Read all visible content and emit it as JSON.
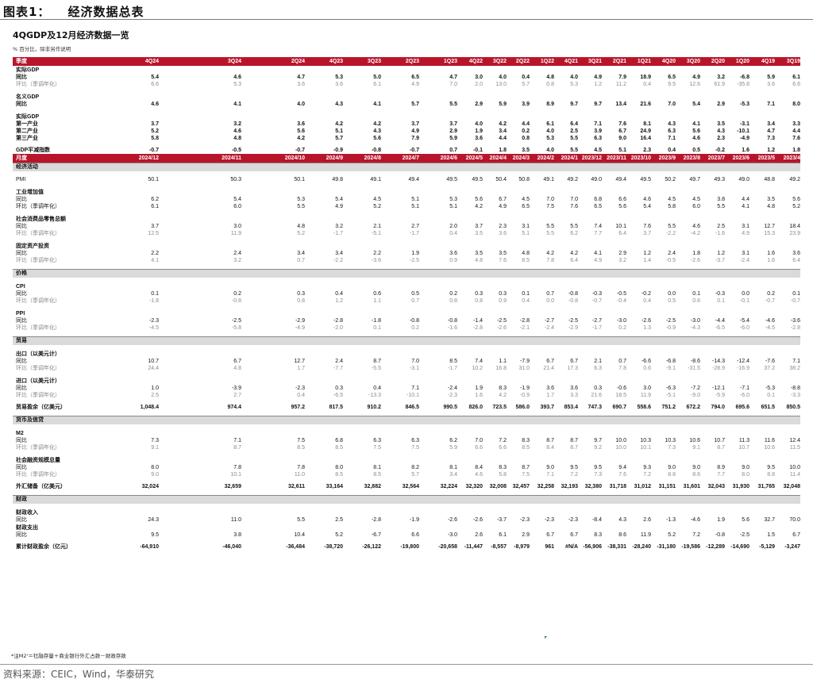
{
  "figure": {
    "label": "图表1：",
    "title": "经济数据总表"
  },
  "table_title": "4QGDP及12月经济数据一览",
  "unit_note": "% 百分比，除非另作说明",
  "quarterly": {
    "header_label": "季度",
    "columns": [
      "4Q24",
      "3Q24",
      "2Q24",
      "4Q23",
      "3Q23",
      "2Q23",
      "1Q23",
      "4Q22",
      "3Q22",
      "2Q22",
      "1Q22",
      "4Q21",
      "3Q21",
      "2Q21",
      "1Q21",
      "4Q20",
      "3Q20",
      "2Q20",
      "1Q20",
      "4Q19",
      "3Q19"
    ],
    "rows": [
      {
        "type": "hdr",
        "label": "实际GDP"
      },
      {
        "type": "bold",
        "label": "同比",
        "values": [
          "5.4",
          "4.6",
          "4.7",
          "5.3",
          "5.0",
          "6.5",
          "4.7",
          "3.0",
          "4.0",
          "0.4",
          "4.8",
          "4.0",
          "4.9",
          "7.9",
          "18.9",
          "6.5",
          "4.9",
          "3.2",
          "-6.8",
          "5.9",
          "6.1"
        ]
      },
      {
        "type": "sub",
        "label": "环比（季调年化）",
        "values": [
          "6.6",
          "5.3",
          "3.6",
          "3.6",
          "6.1",
          "4.9",
          "7.0",
          "2.0",
          "13.0",
          "5.7",
          "0.8",
          "5.3",
          "1.2",
          "11.2",
          "0.4",
          "9.5",
          "12.6",
          "61.9",
          "-35.8",
          "3.6",
          "6.6"
        ]
      },
      {
        "type": "gap"
      },
      {
        "type": "hdr",
        "label": "名义GDP"
      },
      {
        "type": "bold",
        "label": "同比",
        "values": [
          "4.6",
          "4.1",
          "4.0",
          "4.3",
          "4.1",
          "5.7",
          "5.5",
          "2.9",
          "5.9",
          "3.9",
          "8.9",
          "9.7",
          "9.7",
          "13.4",
          "21.6",
          "7.0",
          "5.4",
          "2.9",
          "-5.3",
          "7.1",
          "8.0"
        ]
      },
      {
        "type": "gap"
      },
      {
        "type": "hdr",
        "label": "实际GDP"
      },
      {
        "type": "bold",
        "label": "第一产业",
        "values": [
          "3.7",
          "3.2",
          "3.6",
          "4.2",
          "4.2",
          "3.7",
          "3.7",
          "4.0",
          "4.2",
          "4.4",
          "6.1",
          "6.4",
          "7.1",
          "7.6",
          "8.1",
          "4.3",
          "4.1",
          "3.5",
          "-3.1",
          "3.4",
          "3.3"
        ]
      },
      {
        "type": "bold",
        "label": "第二产业",
        "values": [
          "5.2",
          "4.6",
          "5.6",
          "5.1",
          "4.3",
          "4.9",
          "2.9",
          "1.9",
          "3.4",
          "0.2",
          "4.0",
          "2.5",
          "3.9",
          "6.7",
          "24.9",
          "6.3",
          "5.6",
          "4.3",
          "-10.1",
          "4.7",
          "4.4"
        ]
      },
      {
        "type": "bold",
        "label": "第三产业",
        "values": [
          "5.8",
          "4.8",
          "4.2",
          "5.7",
          "5.6",
          "7.9",
          "5.9",
          "3.6",
          "4.4",
          "0.8",
          "5.3",
          "5.5",
          "6.3",
          "9.0",
          "16.4",
          "7.1",
          "4.6",
          "2.3",
          "-4.9",
          "7.3",
          "7.6"
        ]
      },
      {
        "type": "gap"
      },
      {
        "type": "bold",
        "label": "GDP平减指数",
        "values": [
          "-0.7",
          "-0.5",
          "-0.7",
          "-0.9",
          "-0.8",
          "-0.7",
          "0.7",
          "-0.1",
          "1.8",
          "3.5",
          "4.0",
          "5.5",
          "4.5",
          "5.1",
          "2.3",
          "0.4",
          "0.5",
          "-0.2",
          "1.6",
          "1.2",
          "1.8"
        ]
      }
    ]
  },
  "monthly": {
    "header_label": "月度",
    "columns": [
      "2024/12",
      "2024/11",
      "2024/10",
      "2024/9",
      "2024/8",
      "2024/7",
      "2024/6",
      "2024/5",
      "2024/4",
      "2024/3",
      "2024/2",
      "2024/1",
      "2023/12",
      "2023/11",
      "2023/10",
      "2023/9",
      "2023/8",
      "2023/7",
      "2023/6",
      "2023/5",
      "2023/4"
    ],
    "rows": [
      {
        "type": "gray",
        "label": "经济活动"
      },
      {
        "type": "gap"
      },
      {
        "type": "plain",
        "label": "PMI",
        "values": [
          "50.1",
          "50.3",
          "50.1",
          "49.8",
          "49.1",
          "49.4",
          "49.5",
          "49.5",
          "50.4",
          "50.8",
          "49.1",
          "49.2",
          "49.0",
          "49.4",
          "49.5",
          "50.2",
          "49.7",
          "49.3",
          "49.0",
          "48.8",
          "49.2"
        ]
      },
      {
        "type": "gap"
      },
      {
        "type": "hdr",
        "label": "工业增加值"
      },
      {
        "type": "plain",
        "label": "同比",
        "values": [
          "6.2",
          "5.4",
          "5.3",
          "5.4",
          "4.5",
          "5.1",
          "5.3",
          "5.6",
          "6.7",
          "4.5",
          "7.0",
          "7.0",
          "6.8",
          "6.6",
          "4.6",
          "4.5",
          "4.5",
          "3.8",
          "4.4",
          "3.5",
          "5.6"
        ]
      },
      {
        "type": "plain",
        "label": "环比（季调年化）",
        "values": [
          "6.1",
          "6.0",
          "5.5",
          "4.9",
          "5.2",
          "5.1",
          "5.1",
          "4.2",
          "4.9",
          "6.5",
          "7.5",
          "7.6",
          "6.5",
          "5.6",
          "5.4",
          "5.8",
          "6.0",
          "5.5",
          "4.1",
          "4.8",
          "5.2"
        ]
      },
      {
        "type": "gap"
      },
      {
        "type": "hdr",
        "label": "社会消费品零售总额"
      },
      {
        "type": "plain",
        "label": "同比",
        "values": [
          "3.7",
          "3.0",
          "4.8",
          "3.2",
          "2.1",
          "2.7",
          "2.0",
          "3.7",
          "2.3",
          "3.1",
          "5.5",
          "5.5",
          "7.4",
          "10.1",
          "7.6",
          "5.5",
          "4.6",
          "2.5",
          "3.1",
          "12.7",
          "18.4"
        ]
      },
      {
        "type": "sub",
        "label": "环比（季调年化）",
        "values": [
          "12.5",
          "11.9",
          "5.2",
          "-1.7",
          "-5.1",
          "-1.7",
          "0.4",
          "3.5",
          "3.6",
          "5.1",
          "5.5",
          "6.2",
          "7.7",
          "6.4",
          "3.7",
          "-2.2",
          "-4.2",
          "-1.6",
          "4.9",
          "15.3",
          "23.9"
        ]
      },
      {
        "type": "gap"
      },
      {
        "type": "hdr",
        "label": "固定资产投资"
      },
      {
        "type": "plain",
        "label": "同比",
        "values": [
          "2.2",
          "2.4",
          "3.4",
          "3.4",
          "2.2",
          "1.9",
          "3.6",
          "3.5",
          "3.5",
          "4.8",
          "4.2",
          "4.2",
          "4.1",
          "2.9",
          "1.2",
          "2.4",
          "1.8",
          "1.2",
          "3.1",
          "1.6",
          "3.6"
        ]
      },
      {
        "type": "sub",
        "label": "环比（季调年化）",
        "values": [
          "4.1",
          "3.2",
          "0.7",
          "-2.2",
          "-3.6",
          "-2.5",
          "0.9",
          "4.8",
          "7.6",
          "8.5",
          "7.8",
          "6.4",
          "4.9",
          "3.2",
          "1.4",
          "-0.5",
          "-2.6",
          "-3.7",
          "-2.4",
          "1.6",
          "6.4"
        ]
      },
      {
        "type": "gap"
      },
      {
        "type": "gray",
        "label": "价格"
      },
      {
        "type": "gap"
      },
      {
        "type": "hdr",
        "label": "CPI"
      },
      {
        "type": "plain",
        "label": "同比",
        "values": [
          "0.1",
          "0.2",
          "0.3",
          "0.4",
          "0.6",
          "0.5",
          "0.2",
          "0.3",
          "0.3",
          "0.1",
          "0.7",
          "-0.8",
          "-0.3",
          "-0.5",
          "-0.2",
          "0.0",
          "0.1",
          "-0.3",
          "0.0",
          "0.2",
          "0.1"
        ]
      },
      {
        "type": "sub",
        "label": "环比（季调年化）",
        "values": [
          "-1.8",
          "-0.8",
          "0.8",
          "1.2",
          "1.1",
          "0.7",
          "0.8",
          "0.8",
          "0.9",
          "0.4",
          "0.0",
          "-0.8",
          "-0.7",
          "-0.4",
          "0.4",
          "0.5",
          "0.6",
          "0.1",
          "-0.1",
          "-0.7",
          "-0.7"
        ]
      },
      {
        "type": "gap"
      },
      {
        "type": "hdr",
        "label": "PPI"
      },
      {
        "type": "plain",
        "label": "同比",
        "values": [
          "-2.3",
          "-2.5",
          "-2.9",
          "-2.8",
          "-1.8",
          "-0.8",
          "-0.8",
          "-1.4",
          "-2.5",
          "-2.8",
          "-2.7",
          "-2.5",
          "-2.7",
          "-3.0",
          "-2.6",
          "-2.5",
          "-3.0",
          "-4.4",
          "-5.4",
          "-4.6",
          "-3.6"
        ]
      },
      {
        "type": "sub",
        "label": "环比（季调年化）",
        "values": [
          "-4.5",
          "-5.8",
          "-4.9",
          "-2.0",
          "0.1",
          "0.2",
          "-1.6",
          "-2.8",
          "-2.6",
          "-2.1",
          "-2.4",
          "-2.9",
          "-1.7",
          "0.2",
          "1.3",
          "-0.9",
          "-4.3",
          "-6.5",
          "-6.0",
          "-4.5",
          "-2.8"
        ]
      },
      {
        "type": "gap"
      },
      {
        "type": "gray",
        "label": "贸易"
      },
      {
        "type": "gap"
      },
      {
        "type": "hdr",
        "label": "出口（以美元计）"
      },
      {
        "type": "plain",
        "label": "同比",
        "values": [
          "10.7",
          "6.7",
          "12.7",
          "2.4",
          "8.7",
          "7.0",
          "8.5",
          "7.4",
          "1.1",
          "-7.9",
          "6.7",
          "6.7",
          "2.1",
          "0.7",
          "-6.6",
          "-6.8",
          "-8.6",
          "-14.3",
          "-12.4",
          "-7.6",
          "7.1"
        ]
      },
      {
        "type": "sub",
        "label": "环比（季调年化）",
        "values": [
          "24.4",
          "4.8",
          "1.7",
          "-7.7",
          "-5.5",
          "-3.1",
          "-1.7",
          "10.2",
          "16.8",
          "31.0",
          "21.4",
          "17.3",
          "6.3",
          "7.8",
          "0.6",
          "-9.1",
          "-31.5",
          "-28.9",
          "-16.9",
          "37.2",
          "38.2"
        ]
      },
      {
        "type": "gap"
      },
      {
        "type": "hdr",
        "label": "进口（以美元计）"
      },
      {
        "type": "plain",
        "label": "同比",
        "values": [
          "1.0",
          "-3.9",
          "-2.3",
          "0.3",
          "0.4",
          "7.1",
          "-2.4",
          "1.9",
          "8.3",
          "-1.9",
          "3.6",
          "3.6",
          "0.3",
          "-0.6",
          "3.0",
          "-6.3",
          "-7.2",
          "-12.1",
          "-7.1",
          "-5.3",
          "-8.8"
        ]
      },
      {
        "type": "sub",
        "label": "环比（季调年化）",
        "values": [
          "2.5",
          "2.7",
          "0.4",
          "-6.5",
          "-13.3",
          "-10.1",
          "-2.3",
          "1.6",
          "4.2",
          "-0.9",
          "1.7",
          "3.3",
          "21.6",
          "18.5",
          "11.9",
          "-5.1",
          "-9.0",
          "-5.9",
          "-6.0",
          "0.1",
          "-3.3"
        ]
      },
      {
        "type": "gap"
      },
      {
        "type": "bold",
        "label": "贸易盈余（亿美元）",
        "values": [
          "1,048.4",
          "974.4",
          "957.2",
          "817.5",
          "910.2",
          "846.5",
          "990.5",
          "826.0",
          "723.5",
          "586.0",
          "393.7",
          "853.4",
          "747.3",
          "690.7",
          "558.6",
          "751.2",
          "672.2",
          "794.0",
          "695.6",
          "651.5",
          "850.5"
        ]
      },
      {
        "type": "gap"
      },
      {
        "type": "gray",
        "label": "货币及信贷"
      },
      {
        "type": "gap"
      },
      {
        "type": "hdr",
        "label": "M2"
      },
      {
        "type": "plain",
        "label": "同比",
        "values": [
          "7.3",
          "7.1",
          "7.5",
          "6.8",
          "6.3",
          "6.3",
          "6.2",
          "7.0",
          "7.2",
          "8.3",
          "8.7",
          "8.7",
          "9.7",
          "10.0",
          "10.3",
          "10.3",
          "10.6",
          "10.7",
          "11.3",
          "11.6",
          "12.4"
        ]
      },
      {
        "type": "sub",
        "label": "环比（季调年化）",
        "values": [
          "9.1",
          "8.7",
          "8.5",
          "8.5",
          "7.5",
          "7.5",
          "5.9",
          "6.6",
          "6.6",
          "8.5",
          "8.4",
          "8.7",
          "9.2",
          "10.0",
          "10.1",
          "7.3",
          "9.1",
          "8.7",
          "10.7",
          "10.6",
          "11.5"
        ]
      },
      {
        "type": "gap"
      },
      {
        "type": "hdr",
        "label": "社会融资规模总量"
      },
      {
        "type": "plain",
        "label": "同比",
        "values": [
          "8.0",
          "7.8",
          "7.8",
          "8.0",
          "8.1",
          "8.2",
          "8.1",
          "8.4",
          "8.3",
          "8.7",
          "9.0",
          "9.5",
          "9.5",
          "9.4",
          "9.3",
          "9.0",
          "9.0",
          "8.9",
          "9.0",
          "9.5",
          "10.0"
        ]
      },
      {
        "type": "sub",
        "label": "环比（季调年化）",
        "values": [
          "9.0",
          "10.1",
          "11.0",
          "8.5",
          "8.5",
          "5.7",
          "3.4",
          "4.6",
          "5.8",
          "7.5",
          "7.1",
          "7.2",
          "7.3",
          "7.6",
          "7.2",
          "8.8",
          "8.6",
          "7.7",
          "8.0",
          "8.8",
          "11.4"
        ]
      },
      {
        "type": "gap"
      },
      {
        "type": "bold",
        "label": "外汇储备（亿美元）",
        "values": [
          "32,024",
          "32,659",
          "32,611",
          "33,164",
          "32,882",
          "32,564",
          "32,224",
          "32,320",
          "32,008",
          "32,457",
          "32,258",
          "32,193",
          "32,380",
          "31,718",
          "31,012",
          "31,151",
          "31,601",
          "32,043",
          "31,930",
          "31,765",
          "32,048"
        ]
      },
      {
        "type": "gap"
      },
      {
        "type": "gray",
        "label": "财政"
      },
      {
        "type": "gap"
      },
      {
        "type": "hdr",
        "label": "财政收入"
      },
      {
        "type": "plain",
        "label": "同比",
        "values": [
          "24.3",
          "11.0",
          "5.5",
          "2.5",
          "-2.8",
          "-1.9",
          "-2.6",
          "-2.6",
          "-3.7",
          "-2.3",
          "-2.3",
          "-2.3",
          "-8.4",
          "4.3",
          "2.6",
          "-1.3",
          "-4.6",
          "1.9",
          "5.6",
          "32.7",
          "70.0"
        ]
      },
      {
        "type": "hdr",
        "label": "财政支出"
      },
      {
        "type": "plain",
        "label": "同比",
        "values": [
          "9.5",
          "3.8",
          "10.4",
          "5.2",
          "-6.7",
          "6.6",
          "-3.0",
          "2.6",
          "6.1",
          "2.9",
          "6.7",
          "6.7",
          "8.3",
          "8.6",
          "11.9",
          "5.2",
          "7.2",
          "-0.8",
          "-2.5",
          "1.5",
          "6.7"
        ]
      },
      {
        "type": "gap"
      },
      {
        "type": "bold",
        "label": "累计财政盈余（亿元）",
        "values": [
          "-64,910",
          "-46,040",
          "-36,484",
          "-38,720",
          "-26,122",
          "-19,800",
          "-20,658",
          "-11,447",
          "-8,557",
          "-8,979",
          "961",
          "#N/A",
          "-56,906",
          "-38,331",
          "-28,240",
          "-31,180",
          "-19,586",
          "-12,289",
          "-14,690",
          "-5,129",
          "-3,247"
        ]
      }
    ]
  },
  "footnote": "*注M2'＝社融存量＋商业银行外汇占款－财政存款",
  "source": "资料来源：CEIC，Wind，华泰研究"
}
